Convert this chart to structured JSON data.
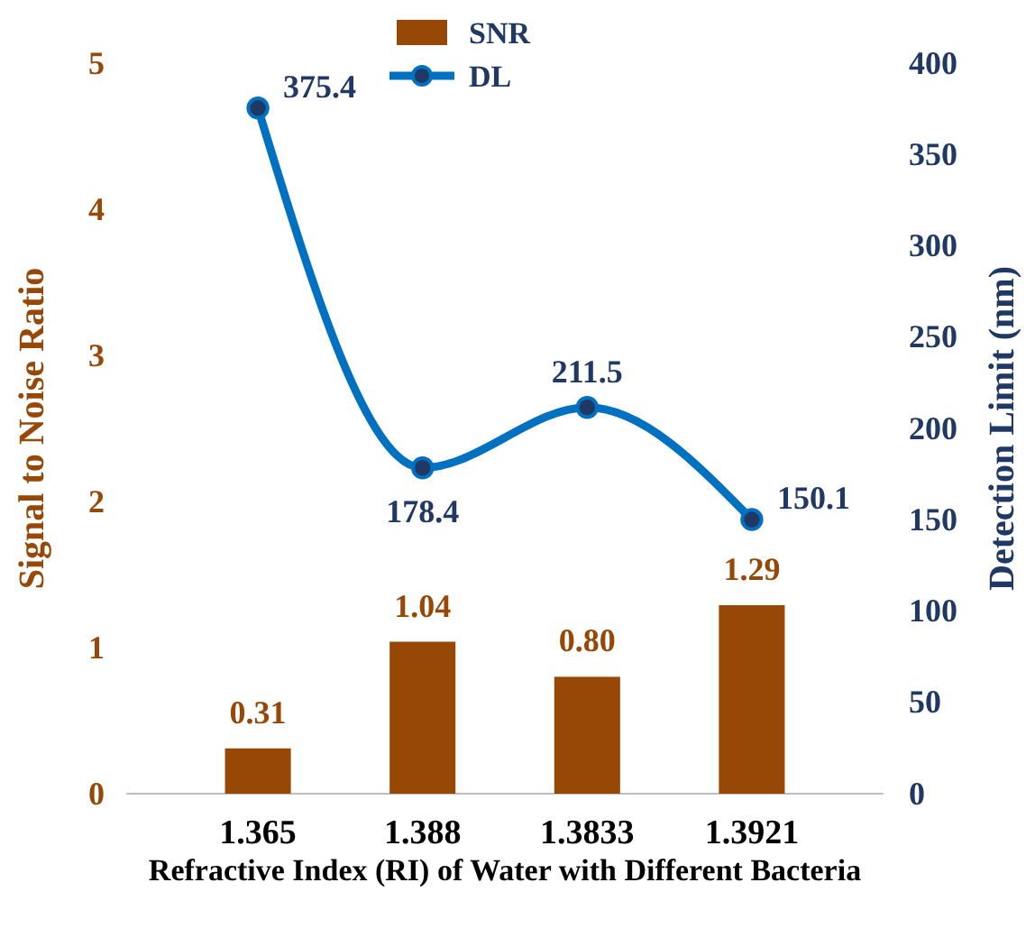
{
  "chart_data": {
    "type": "bar",
    "categories": [
      "1.365",
      "1.388",
      "1.3833",
      "1.3921"
    ],
    "xlabel": "Refractive Index (RI) of Water with Different Bacteria",
    "ylabel": "Signal to Noise Ratio",
    "y2label": "Detection Limit (nm)",
    "ylim": [
      0,
      5
    ],
    "yticks": [
      0,
      1,
      2,
      3,
      4,
      5
    ],
    "y2lim": [
      0,
      400
    ],
    "y2ticks": [
      0,
      50,
      100,
      150,
      200,
      250,
      300,
      350,
      400
    ],
    "legend": "top",
    "grid": false,
    "series": [
      {
        "name": "SNR",
        "color": "#974706",
        "values": [
          0.31,
          1.04,
          0.8,
          1.29
        ],
        "value_labels": [
          "0.31",
          "1.04",
          "0.80",
          "1.29"
        ]
      },
      {
        "name": "DL",
        "type": "line",
        "axis": "y2",
        "color": "#0070c0",
        "marker": "circle",
        "line_style": "solid",
        "values": [
          375.4,
          178.4,
          211.5,
          150.1
        ],
        "value_labels": [
          "375.4",
          "178.4",
          "211.5",
          "150.1"
        ]
      }
    ]
  }
}
